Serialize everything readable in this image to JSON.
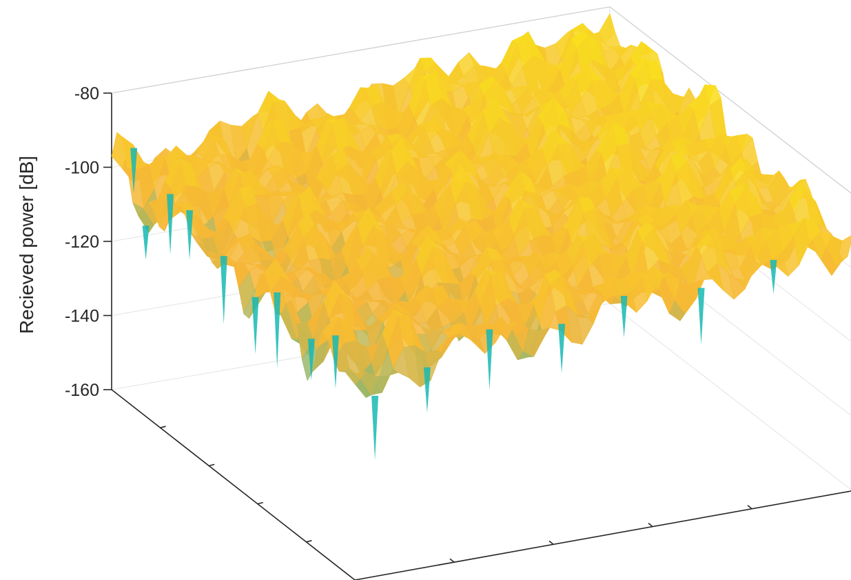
{
  "chart_data": {
    "type": "surface",
    "title": "",
    "xlabel": "",
    "ylabel": "",
    "zlabel": "Recieved power [dB]",
    "zlim": [
      -160,
      -80
    ],
    "zticks": [
      -80,
      -100,
      -120,
      -140,
      -160
    ],
    "zticklabels": [
      "-80",
      "-100",
      "-120",
      "-140",
      "-160"
    ],
    "grid": true,
    "colormap": "parula",
    "colors": {
      "high": "#F9E21C",
      "mid": "#F6B637",
      "low": "#16B9B4",
      "deep": "#2A9C8F"
    },
    "surface_typical_level": -100,
    "surface_peak_level": -85,
    "deep_fade_min": -160
  }
}
